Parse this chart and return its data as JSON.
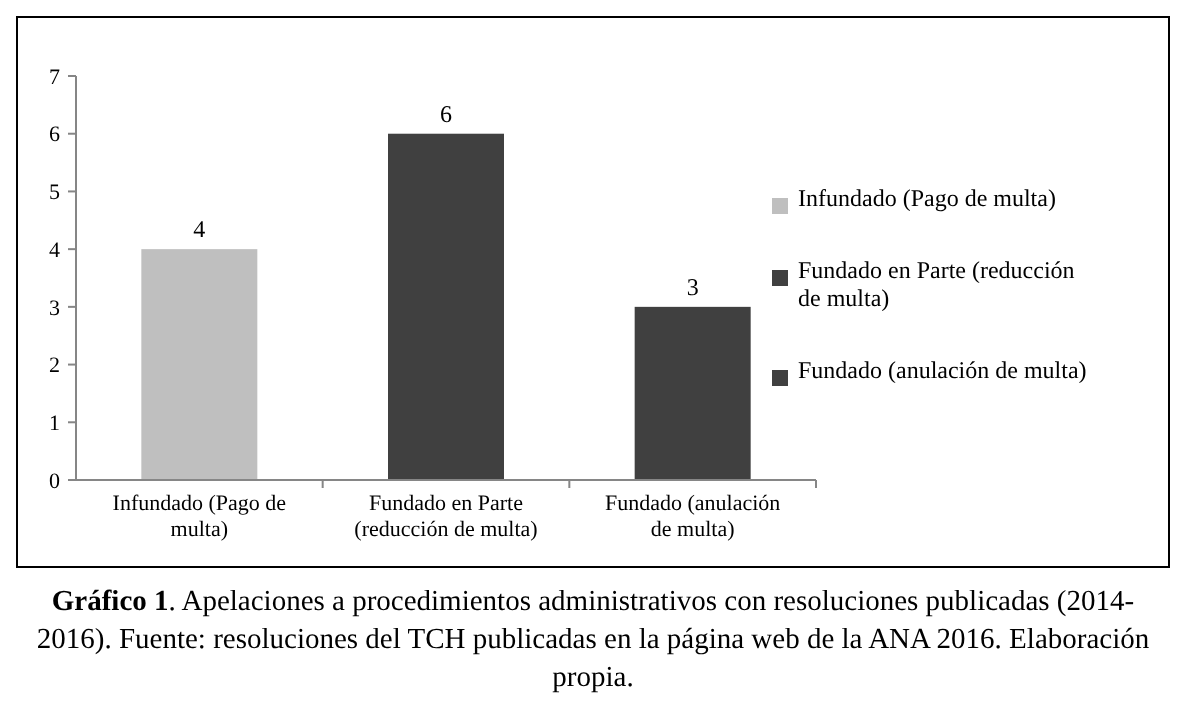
{
  "chart_data": {
    "type": "bar",
    "title": "Gráfico 1",
    "annotations": [
      ". Apelaciones a procedimientos administrativos con resoluciones publicadas (2014-2016). Fuente: resoluciones del TCH publicadas en la página web de la ANA 2016. Elaboración propia."
    ],
    "categories": [
      "Infundado (Pago de multa)",
      "Fundado en Parte (reducción de multa)",
      "Fundado (anulación de multa)"
    ],
    "series": [
      {
        "name": "Infundado (Pago de multa)",
        "color": "#bfbfbf",
        "values": [
          4,
          null,
          null
        ]
      },
      {
        "name": "Fundado en Parte (reducción de multa)",
        "color": "#404040",
        "values": [
          null,
          6,
          null
        ]
      },
      {
        "name": "Fundado (anulación de multa)",
        "color": "#404040",
        "values": [
          null,
          null,
          3
        ]
      }
    ],
    "ylim": [
      0,
      7
    ],
    "yticks": [
      0,
      1,
      2,
      3,
      4,
      5,
      6,
      7
    ],
    "data_labels": true,
    "legend": "right"
  }
}
